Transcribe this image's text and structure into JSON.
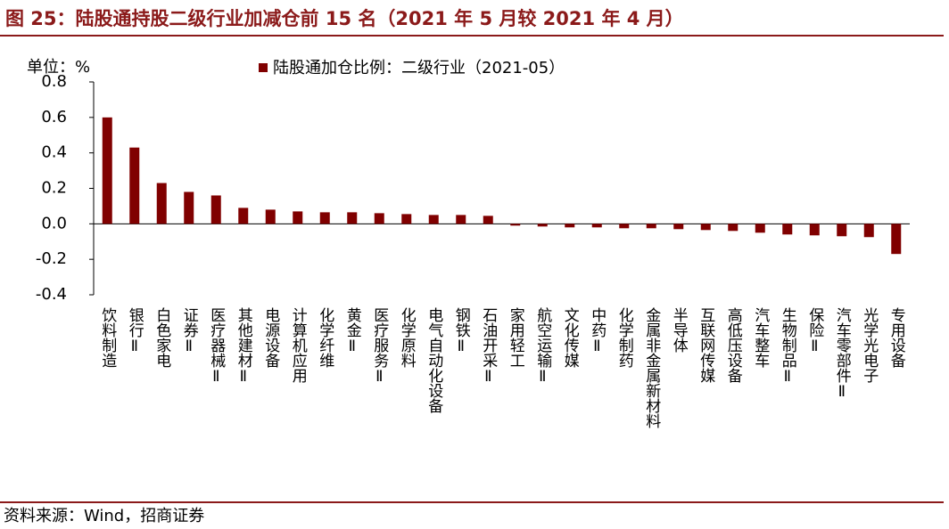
{
  "chart_data": {
    "type": "bar",
    "title": "图 25：陆股通持股二级行业加减仓前 15 名（2021 年 5 月较 2021 年 4 月）",
    "unit": "单位：%",
    "source": "资料来源：Wind，招商证券",
    "series": [
      {
        "name": "陆股通加仓比例：二级行业（2021-05）",
        "color": "#800000",
        "values": [
          0.6,
          0.43,
          0.23,
          0.18,
          0.16,
          0.09,
          0.08,
          0.07,
          0.065,
          0.065,
          0.06,
          0.055,
          0.05,
          0.05,
          0.045,
          -0.01,
          -0.015,
          -0.02,
          -0.02,
          -0.025,
          -0.025,
          -0.03,
          -0.035,
          -0.04,
          -0.05,
          -0.06,
          -0.065,
          -0.07,
          -0.075,
          -0.17
        ]
      }
    ],
    "categories": [
      "饮料制造",
      "银行Ⅱ",
      "白色家电",
      "证券Ⅱ",
      "医疗器械Ⅱ",
      "其他建材Ⅱ",
      "电源设备",
      "计算机应用",
      "化学纤维",
      "黄金Ⅱ",
      "医疗服务Ⅱ",
      "化学原料",
      "电气自动化设备",
      "钢铁Ⅱ",
      "石油开采Ⅱ",
      "家用轻工",
      "航空运输Ⅱ",
      "文化传媒",
      "中药Ⅱ",
      "化学制药",
      "金属非金属新材料",
      "半导体",
      "互联网传媒",
      "高低压设备",
      "汽车整车",
      "生物制品Ⅱ",
      "保险Ⅱ",
      "汽车零部件Ⅱ",
      "光学光电子",
      "专用设备"
    ],
    "ylim": [
      -0.4,
      0.8
    ],
    "yticks": [
      -0.4,
      -0.2,
      {
        "value": 0,
        "label": "0.0"
      },
      0.2,
      0.4,
      0.6,
      0.8
    ],
    "legend": "top"
  }
}
